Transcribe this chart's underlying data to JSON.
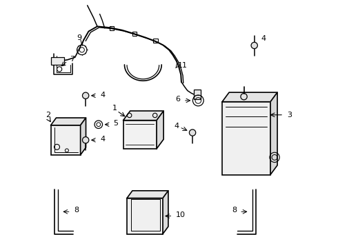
{
  "bg_color": "#ffffff",
  "line_color": "#000000",
  "line_width": 1.2,
  "fig_width": 4.9,
  "fig_height": 3.6,
  "dpi": 100
}
